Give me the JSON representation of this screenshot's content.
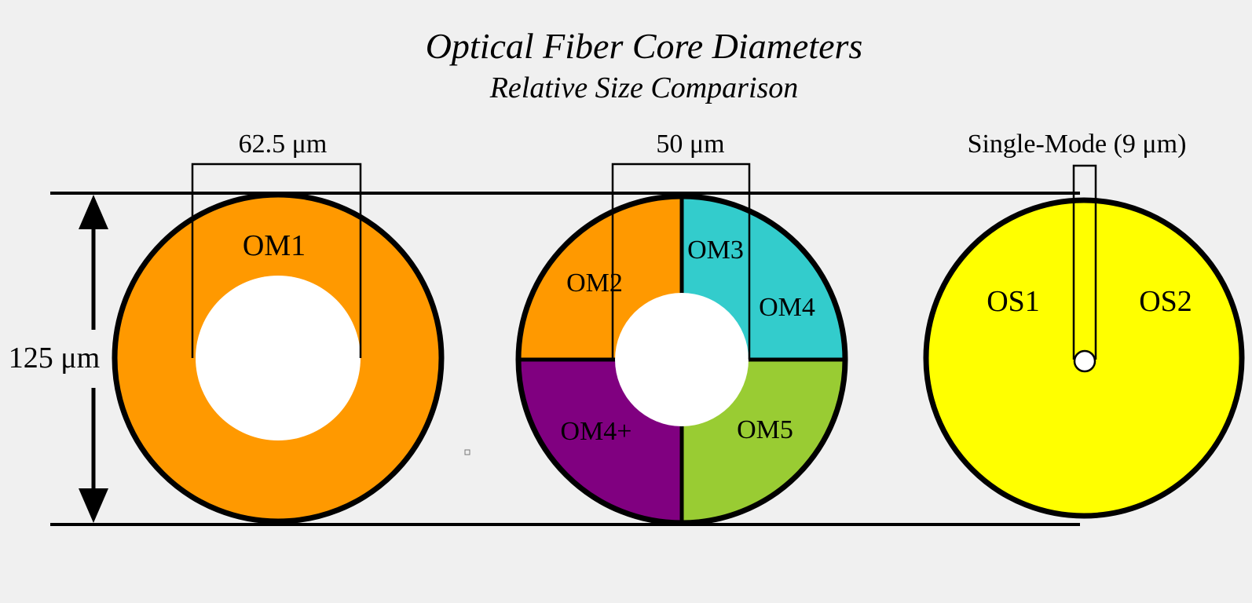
{
  "title": "Optical Fiber Core Diameters",
  "subtitle": "Relative Size Comparison",
  "cladding_label": "125 μm",
  "fibers": [
    {
      "core_label": "62.5 μm",
      "core_um": 62.5,
      "cladding_um": 125,
      "segments": [
        {
          "label": "OM1",
          "color": "#ff9900"
        }
      ]
    },
    {
      "core_label": "50 μm",
      "core_um": 50,
      "cladding_um": 125,
      "segments": [
        {
          "label": "OM2",
          "color": "#ff9900"
        },
        {
          "label": "OM3",
          "color": "#33cccc"
        },
        {
          "label": "OM4",
          "color": "#33cccc"
        },
        {
          "label": "OM4+",
          "color": "#800080"
        },
        {
          "label": "OM5",
          "color": "#99cc33"
        }
      ]
    },
    {
      "core_label": "Single-Mode (9 μm)",
      "core_um": 9,
      "cladding_um": 125,
      "segments": [
        {
          "label": "OS1",
          "color": "#ffff00"
        },
        {
          "label": "OS2",
          "color": "#ffff00"
        }
      ]
    }
  ],
  "colors": {
    "background": "#f0f0f0",
    "outline": "#000000",
    "core": "#ffffff"
  }
}
